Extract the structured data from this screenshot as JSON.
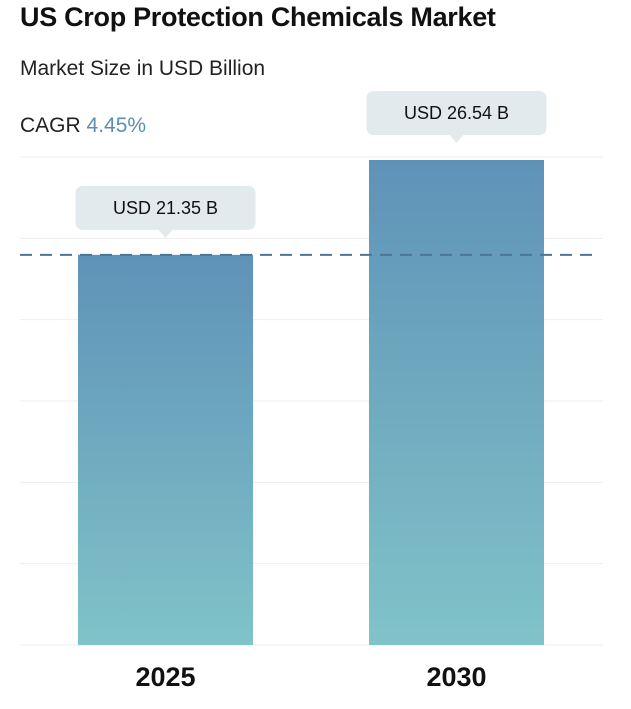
{
  "header": {
    "title": "US Crop Protection Chemicals Market",
    "subtitle": "Market Size in USD Billion",
    "cagr_label": "CAGR",
    "cagr_value": "4.45%"
  },
  "colors": {
    "bar_top": "#5f92b8",
    "bar_bottom": "#80c3c8",
    "dashed_line": "#4e7597",
    "callout_bg": "#e2eaee",
    "grid": "#eeeeee",
    "cagr_accent": "#5b8db5"
  },
  "chart_data": {
    "type": "bar",
    "categories": [
      "2025",
      "2030"
    ],
    "values": [
      21.35,
      26.54
    ],
    "data_labels": [
      "USD 21.35 B",
      "USD 26.54 B"
    ],
    "title": "US Crop Protection Chemicals Market",
    "subtitle": "Market Size in USD Billion",
    "ylim": [
      0,
      26.54
    ],
    "grid": true,
    "reference_line": {
      "value": 21.35,
      "style": "dashed"
    }
  }
}
